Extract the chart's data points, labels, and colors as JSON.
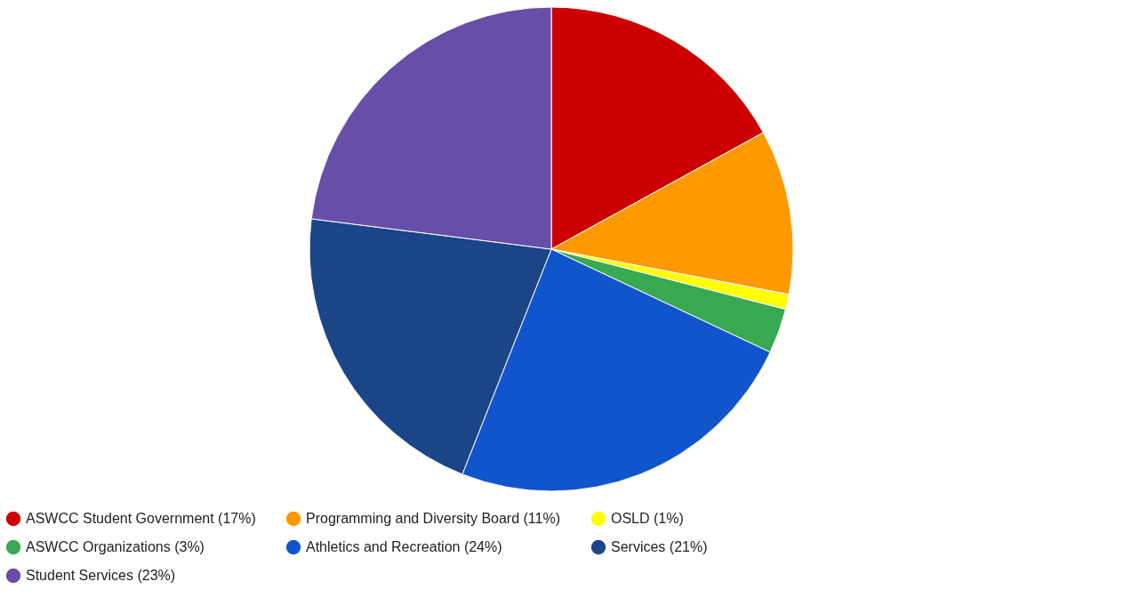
{
  "chart_data": {
    "type": "pie",
    "categories": [
      "ASWCC Student Government (17%)",
      "Programming and Diversity Board (11%)",
      "OSLD (1%)",
      "ASWCC Organizations (3%)",
      "Athletics and Recreation (24%)",
      "Services (21%)",
      "Student Services (23%)"
    ],
    "values": [
      17,
      11,
      1,
      3,
      24,
      21,
      23
    ],
    "colors": [
      "#cc0000",
      "#ff9900",
      "#ffff00",
      "#38a852",
      "#1155cc",
      "#1c4587",
      "#674ea7"
    ],
    "legend": "bottom"
  }
}
